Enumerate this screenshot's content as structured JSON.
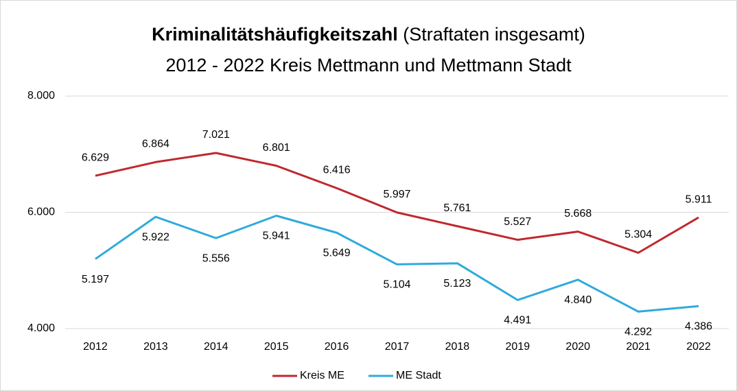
{
  "chart_data": {
    "type": "line",
    "title_bold": "Kriminalitätshäufigkeitszahl",
    "title_rest": "(Straftaten insgesamt)",
    "subtitle": "2012 - 2022 Kreis Mettmann und Mettmann Stadt",
    "categories": [
      "2012",
      "2013",
      "2014",
      "2015",
      "2016",
      "2017",
      "2018",
      "2019",
      "2020",
      "2021",
      "2022"
    ],
    "series": [
      {
        "name": "Kreis ME",
        "color": "#c0282d",
        "values": [
          6629,
          6864,
          7021,
          6801,
          6416,
          5997,
          5761,
          5527,
          5668,
          5304,
          5911
        ],
        "value_labels": [
          "6.629",
          "6.864",
          "7.021",
          "6.801",
          "6.416",
          "5.997",
          "5.761",
          "5.527",
          "5.668",
          "5.304",
          "5.911"
        ]
      },
      {
        "name": "ME Stadt",
        "color": "#2eaadc",
        "values": [
          5197,
          5922,
          5556,
          5941,
          5649,
          5104,
          5123,
          4491,
          4840,
          4292,
          4386
        ],
        "value_labels": [
          "5.197",
          "5.922",
          "5.556",
          "5.941",
          "5.649",
          "5.104",
          "5.123",
          "4.491",
          "4.840",
          "4.292",
          "4.386"
        ]
      }
    ],
    "ylim": [
      4000,
      8000
    ],
    "yticks": [
      {
        "value": 4000,
        "label": "4.000"
      },
      {
        "value": 6000,
        "label": "6.000"
      },
      {
        "value": 8000,
        "label": "8.000"
      }
    ],
    "grid": true,
    "legend": "bottom"
  }
}
